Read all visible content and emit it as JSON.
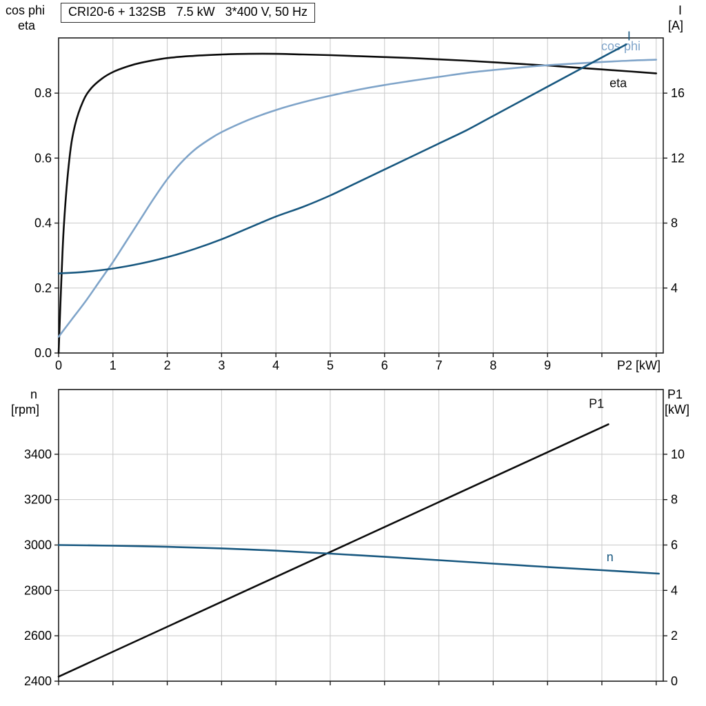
{
  "title_box": {
    "text": "CRI20-6 + 132SB   7.5 kW   3*400 V, 50 Hz"
  },
  "axis_corner_labels": {
    "top_left_1": "cos phi",
    "top_left_2": "eta",
    "top_right_1": "I",
    "top_right_2": "[A]",
    "bottom_left_1": "n",
    "bottom_left_2": "[rpm]",
    "bottom_right_1": "P1",
    "bottom_right_2": "[kW]"
  },
  "colors": {
    "curve_black": "#0a0a0a",
    "curve_dark_blue": "#17577f",
    "curve_light_blue": "#7fa4c9",
    "grid": "#c8c8c8",
    "frame": "#1a1a1a",
    "text": "#000000"
  },
  "chart_data": [
    {
      "id": "top",
      "type": "line",
      "title": "CRI20-6 + 132SB 7.5 kW 3*400 V, 50 Hz",
      "xlabel": "P2 [kW]",
      "xlim": [
        0,
        11.13
      ],
      "x_grid": [
        1,
        2,
        3,
        4,
        5,
        6,
        7,
        8,
        9,
        10,
        11
      ],
      "x_ticks": [
        0,
        1,
        2,
        3,
        4,
        5,
        6,
        7,
        8,
        9,
        10,
        11
      ],
      "x_tick_labels": [
        "0",
        "1",
        "2",
        "3",
        "4",
        "5",
        "6",
        "7",
        "8",
        "9",
        "",
        ""
      ],
      "left_axis": {
        "label": "cos phi / eta",
        "lim": [
          0,
          0.97
        ],
        "ticks": [
          0,
          0.2,
          0.4,
          0.6,
          0.8
        ],
        "tick_labels": [
          "0.0",
          "0.2",
          "0.4",
          "0.6",
          "0.8"
        ]
      },
      "right_axis": {
        "label": "I [A]",
        "lim": [
          0,
          19.4
        ],
        "ticks": [
          4,
          8,
          12,
          16
        ],
        "tick_labels": [
          "4",
          "8",
          "12",
          "16"
        ]
      },
      "legend_position": "right-end-of-curves",
      "grid": true,
      "series": [
        {
          "name": "eta",
          "axis": "left",
          "color_key": "curve_black",
          "label": "eta",
          "label_at": [
            10.3,
            0.818
          ],
          "points": [
            [
              0,
              0
            ],
            [
              0.05,
              0.22
            ],
            [
              0.1,
              0.4
            ],
            [
              0.2,
              0.6
            ],
            [
              0.3,
              0.7
            ],
            [
              0.45,
              0.775
            ],
            [
              0.6,
              0.815
            ],
            [
              0.8,
              0.845
            ],
            [
              1,
              0.865
            ],
            [
              1.25,
              0.881
            ],
            [
              1.5,
              0.893
            ],
            [
              2,
              0.908
            ],
            [
              2.5,
              0.915
            ],
            [
              3,
              0.919
            ],
            [
              3.5,
              0.921
            ],
            [
              4,
              0.921
            ],
            [
              4.5,
              0.919
            ],
            [
              5,
              0.917
            ],
            [
              5.5,
              0.914
            ],
            [
              6,
              0.911
            ],
            [
              6.5,
              0.908
            ],
            [
              7,
              0.904
            ],
            [
              7.5,
              0.9
            ],
            [
              8,
              0.895
            ],
            [
              8.5,
              0.89
            ],
            [
              9,
              0.885
            ],
            [
              9.5,
              0.879
            ],
            [
              10,
              0.873
            ],
            [
              10.5,
              0.867
            ],
            [
              11,
              0.861
            ]
          ]
        },
        {
          "name": "cos phi",
          "axis": "left",
          "color_key": "curve_light_blue",
          "label": "cos phi",
          "label_at": [
            10.35,
            0.932
          ],
          "points": [
            [
              0,
              0.05
            ],
            [
              0.25,
              0.105
            ],
            [
              0.5,
              0.16
            ],
            [
              0.75,
              0.22
            ],
            [
              1,
              0.28
            ],
            [
              1.25,
              0.345
            ],
            [
              1.5,
              0.41
            ],
            [
              1.75,
              0.475
            ],
            [
              2,
              0.535
            ],
            [
              2.25,
              0.585
            ],
            [
              2.5,
              0.625
            ],
            [
              2.75,
              0.655
            ],
            [
              3,
              0.68
            ],
            [
              3.5,
              0.718
            ],
            [
              4,
              0.748
            ],
            [
              4.5,
              0.772
            ],
            [
              5,
              0.792
            ],
            [
              5.5,
              0.81
            ],
            [
              6,
              0.825
            ],
            [
              6.5,
              0.838
            ],
            [
              7,
              0.85
            ],
            [
              7.5,
              0.862
            ],
            [
              8,
              0.871
            ],
            [
              8.5,
              0.879
            ],
            [
              9,
              0.886
            ],
            [
              9.5,
              0.891
            ],
            [
              10,
              0.896
            ],
            [
              10.5,
              0.9
            ],
            [
              11,
              0.903
            ]
          ]
        },
        {
          "name": "I",
          "axis": "right",
          "color_key": "curve_dark_blue",
          "label": "I",
          "label_at": [
            10.5,
            19.25
          ],
          "points": [
            [
              0,
              4.9
            ],
            [
              0.5,
              5.0
            ],
            [
              1,
              5.2
            ],
            [
              1.5,
              5.5
            ],
            [
              2,
              5.9
            ],
            [
              2.5,
              6.4
            ],
            [
              3,
              7.0
            ],
            [
              3.5,
              7.7
            ],
            [
              4,
              8.4
            ],
            [
              4.5,
              9.0
            ],
            [
              5,
              9.7
            ],
            [
              5.5,
              10.5
            ],
            [
              6,
              11.3
            ],
            [
              6.5,
              12.1
            ],
            [
              7,
              12.9
            ],
            [
              7.5,
              13.7
            ],
            [
              8,
              14.6
            ],
            [
              8.5,
              15.5
            ],
            [
              9,
              16.4
            ],
            [
              9.5,
              17.3
            ],
            [
              10,
              18.2
            ],
            [
              10.45,
              19.0
            ]
          ]
        }
      ]
    },
    {
      "id": "bottom",
      "type": "line",
      "title": "",
      "xlabel": "",
      "xlim": [
        0,
        11.13
      ],
      "x_grid": [
        1,
        2,
        3,
        4,
        5,
        6,
        7,
        8,
        9,
        10,
        11
      ],
      "x_ticks": [
        0,
        1,
        2,
        3,
        4,
        5,
        6,
        7,
        8,
        9,
        10,
        11
      ],
      "x_tick_labels": [
        "",
        "",
        "",
        "",
        "",
        "",
        "",
        "",
        "",
        "",
        "",
        ""
      ],
      "left_axis": {
        "label": "n [rpm]",
        "lim": [
          2400,
          3685
        ],
        "ticks": [
          2400,
          2600,
          2800,
          3000,
          3200,
          3400
        ],
        "tick_labels": [
          "2400",
          "2600",
          "2800",
          "3000",
          "3200",
          "3400"
        ]
      },
      "right_axis": {
        "label": "P1 [kW]",
        "lim": [
          0,
          12.85
        ],
        "ticks": [
          0,
          2,
          4,
          6,
          8,
          10
        ],
        "tick_labels": [
          "0",
          "2",
          "4",
          "6",
          "8",
          "10"
        ]
      },
      "legend_position": "right-end-of-curves",
      "grid": true,
      "series": [
        {
          "name": "P1",
          "axis": "right",
          "color_key": "curve_black",
          "label": "P1",
          "label_at": [
            9.9,
            12.05
          ],
          "points": [
            [
              0,
              0.2
            ],
            [
              10.12,
              11.32
            ]
          ]
        },
        {
          "name": "n",
          "axis": "left",
          "color_key": "curve_dark_blue",
          "label": "n",
          "label_at": [
            10.15,
            2928
          ],
          "points": [
            [
              0,
              3000
            ],
            [
              1,
              2997
            ],
            [
              2,
              2992
            ],
            [
              3,
              2985
            ],
            [
              4,
              2975
            ],
            [
              5,
              2962
            ],
            [
              6,
              2948
            ],
            [
              7,
              2933
            ],
            [
              8,
              2918
            ],
            [
              9,
              2903
            ],
            [
              10,
              2889
            ],
            [
              11.05,
              2874
            ]
          ]
        }
      ]
    }
  ]
}
